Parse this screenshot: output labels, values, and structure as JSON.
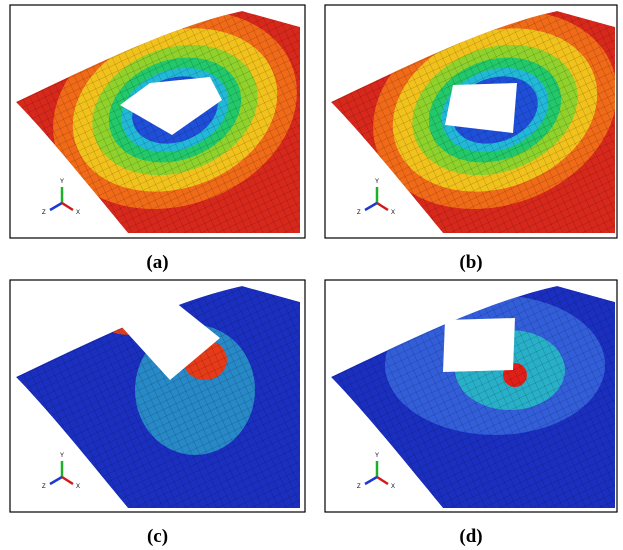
{
  "panels": [
    {
      "label": "(a)",
      "axes": {
        "y": "Y",
        "z": "Z",
        "x": "X"
      }
    },
    {
      "label": "(b)",
      "axes": {
        "y": "Y",
        "z": "Z",
        "x": "X"
      }
    },
    {
      "label": "(c)",
      "axes": {
        "y": "Y",
        "z": "Z",
        "x": "X"
      }
    },
    {
      "label": "(d)",
      "axes": {
        "y": "Y",
        "z": "Z",
        "x": "X"
      }
    }
  ]
}
